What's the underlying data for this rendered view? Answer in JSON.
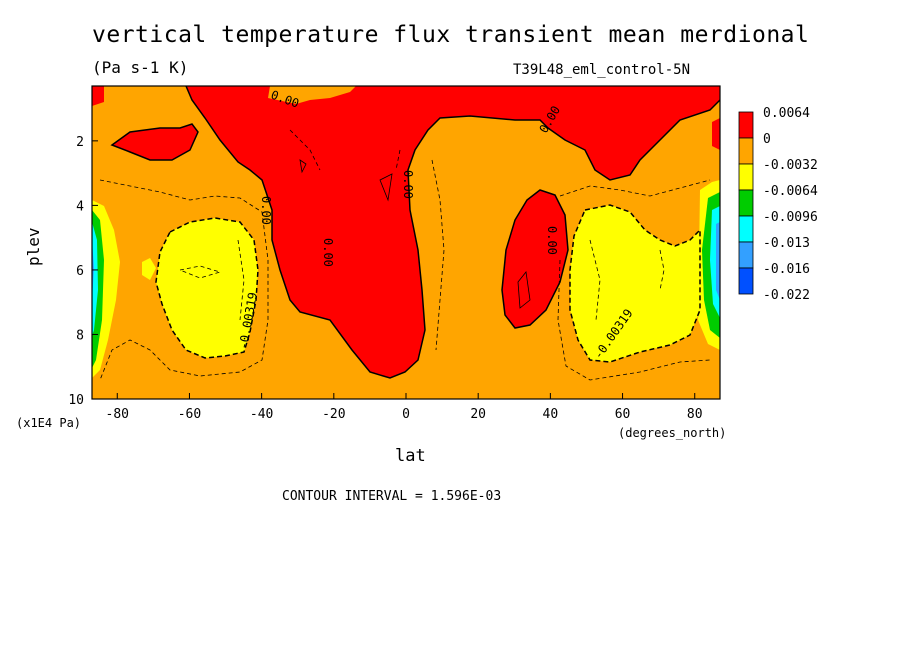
{
  "header": {
    "title": "vertical temperature flux transient mean merdional",
    "units": "(Pa s-1 K)",
    "dataset": "T39L48_eml_control-5N"
  },
  "footer": {
    "contour_interval": "CONTOUR INTERVAL = 1.596E-03"
  },
  "chart_data": {
    "type": "heatmap",
    "title": "vertical temperature flux transient mean merdional",
    "subtitle": "(Pa s-1 K)",
    "xlabel": "lat",
    "xunit": "(degrees_north)",
    "ylabel": "plev",
    "yunit": "(x1E4 Pa)",
    "xlim": [
      -87,
      87
    ],
    "ylim": [
      10,
      0.3
    ],
    "xticks": [
      "-80",
      "-60",
      "-40",
      "-20",
      "0",
      "20",
      "40",
      "60",
      "80"
    ],
    "yticks": [
      "2",
      "4",
      "6",
      "8",
      "10"
    ],
    "legend": {
      "position": "right",
      "labels": [
        "0.0064",
        "0",
        "-0.0032",
        "-0.0064",
        "-0.0096",
        "-0.013",
        "-0.016",
        "-0.022"
      ],
      "colors": [
        "#ff0000",
        "#ffa500",
        "#ffff00",
        "#00cc00",
        "#00ffff",
        "#33a0ff",
        "#0050ff"
      ]
    },
    "contour_labels": [
      "0.00",
      "0.00",
      "0.00",
      "0.00",
      "0.00",
      "0.00",
      "-0.00319",
      "-0.00319"
    ],
    "contour_interval": 0.001596
  }
}
